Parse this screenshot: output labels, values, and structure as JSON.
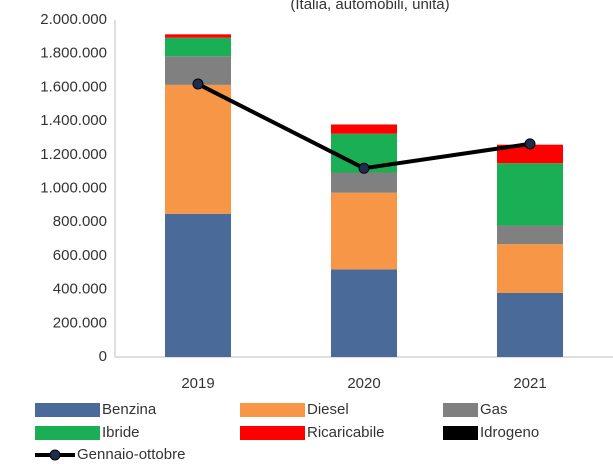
{
  "chart_data": {
    "type": "stacked_bar_line",
    "subtitle": "(Italia, automobili, unità)",
    "categories": [
      "2019",
      "2020",
      "2021"
    ],
    "series": [
      {
        "name": "Benzina",
        "color": "#4a6a99",
        "values": [
          850000,
          520000,
          380000
        ]
      },
      {
        "name": "Diesel",
        "color": "#f79646",
        "values": [
          765000,
          455000,
          290000
        ]
      },
      {
        "name": "Gas",
        "color": "#808080",
        "values": [
          170000,
          120000,
          110000
        ]
      },
      {
        "name": "Ibride",
        "color": "#1aaf54",
        "values": [
          110000,
          230000,
          370000
        ]
      },
      {
        "name": "Ricaricabile",
        "color": "#ff0000",
        "values": [
          20000,
          55000,
          110000
        ]
      },
      {
        "name": "Idrogeno",
        "color": "#000000",
        "values": [
          0,
          0,
          0
        ]
      }
    ],
    "line_series": {
      "name": "Gennaio-ottobre",
      "color": "#000000",
      "marker_color": "#1f2d4d",
      "values": [
        1620000,
        1120000,
        1265000
      ]
    },
    "ylim": [
      0,
      2000000
    ],
    "yticks": [
      0,
      {
        "value": 200000,
        "label": "200.000"
      },
      {
        "value": 400000,
        "label": "400.000"
      },
      {
        "value": 600000,
        "label": "600.000"
      },
      {
        "value": 800000,
        "label": "800.000"
      },
      {
        "value": 1000000,
        "label": "1.000.000"
      },
      {
        "value": 1200000,
        "label": "1.200.000"
      },
      {
        "value": 1400000,
        "label": "1.400.000"
      },
      {
        "value": 1600000,
        "label": "1.600.000"
      },
      {
        "value": 1800000,
        "label": "1.800.000"
      },
      {
        "value": 2000000,
        "label": "2.000.000"
      }
    ],
    "grid": false
  }
}
